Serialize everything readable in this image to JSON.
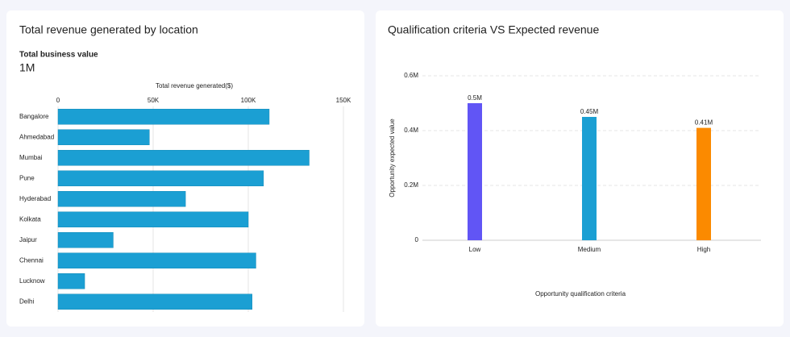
{
  "chart_data": [
    {
      "type": "bar",
      "orientation": "horizontal",
      "title": "Total revenue generated by location",
      "kpi_label": "Total business value",
      "kpi_value": "1M",
      "x_label": "Total revenue generated($)",
      "categories": [
        "Bangalore",
        "Ahmedabad",
        "Mumbai",
        "Pune",
        "Hyderabad",
        "Kolkata",
        "Jaipur",
        "Chennai",
        "Lucknow",
        "Delhi"
      ],
      "values": [
        111000,
        48000,
        132000,
        108000,
        67000,
        100000,
        29000,
        104000,
        14000,
        102000
      ],
      "color": "#1b9fd3",
      "xlim": [
        0,
        150000
      ],
      "xticks": [
        0,
        {
          "value": 50000,
          "label": "50K"
        },
        {
          "value": 100000,
          "label": "100K"
        },
        {
          "value": 150000,
          "label": "150K"
        }
      ],
      "grid": true
    },
    {
      "type": "bar",
      "orientation": "vertical",
      "title": "Qualification criteria VS Expected revenue",
      "x_label": "Opportunity qualification criteria",
      "y_label": "Opportunity expected value",
      "categories": [
        "Low",
        "Medium",
        "High"
      ],
      "values": [
        500000,
        450000,
        410000
      ],
      "value_labels": [
        "0.5M",
        "0.45M",
        "0.41M"
      ],
      "colors": [
        "#6155f5",
        "#1b9fd3",
        "#fb8a00"
      ],
      "ylim": [
        0,
        600000
      ],
      "yticks": [
        0,
        {
          "value": 200000,
          "label": "0.2M"
        },
        {
          "value": 400000,
          "label": "0.4M"
        },
        {
          "value": 600000,
          "label": "0.6M"
        }
      ],
      "grid": true
    }
  ]
}
